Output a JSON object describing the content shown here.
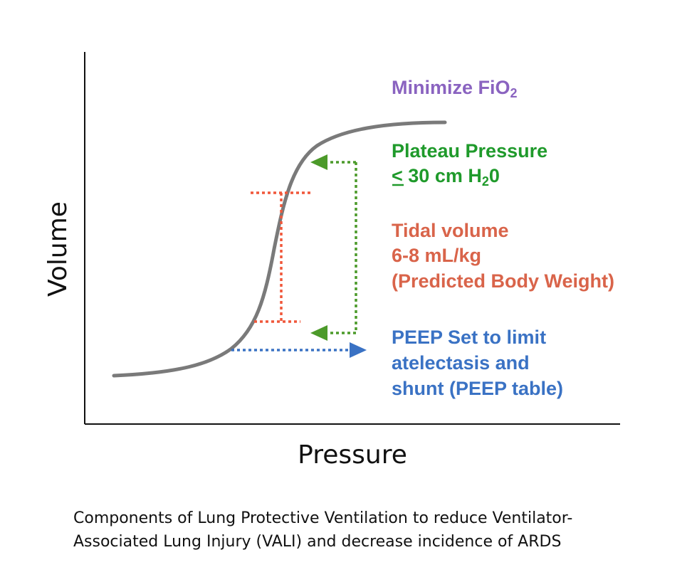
{
  "axes": {
    "x_label": "Pressure",
    "y_label": "Volume"
  },
  "annotations": {
    "fio2": {
      "text": "Minimize FiO",
      "subscript": "2",
      "color": "#8a63c0"
    },
    "plateau": {
      "line1": "Plateau Pressure",
      "line2_symbol": "<",
      "line2_text": " 30 cm H",
      "line2_subscript": "2",
      "line2_end": "0",
      "color": "#1f9a2b"
    },
    "tidal": {
      "line1": "Tidal volume",
      "line2": "6-8 mL/kg",
      "line3": "(Predicted Body Weight)",
      "color": "#d9644a"
    },
    "peep": {
      "line1": "PEEP Set to limit",
      "line2": "atelectasis and",
      "line3": "shunt (PEEP table)",
      "color": "#3a72c4"
    }
  },
  "curve_color": "#7a7a7a",
  "caption": {
    "line1": "Components of Lung Protective Ventilation to reduce Ventilator-",
    "line2": "Associated Lung Injury (VALI) and decrease incidence of ARDS"
  }
}
